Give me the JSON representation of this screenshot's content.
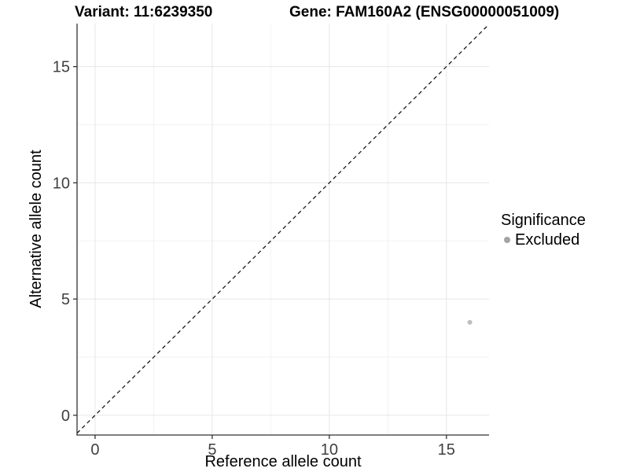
{
  "titles": {
    "variant": "Variant: 11:6239350",
    "gene": "Gene: FAM160A2 (ENSG00000051009)"
  },
  "axes": {
    "x": {
      "label": "Reference allele count"
    },
    "y": {
      "label": "Alternative allele count"
    }
  },
  "legend": {
    "title": "Significance",
    "items": [
      {
        "label": "Excluded",
        "color": "#A3A3A3"
      }
    ]
  },
  "colors": {
    "background": "#FFFFFF",
    "grid_major": "#E6E6E6",
    "grid_minor": "#F2F2F2",
    "axis": "#333333",
    "tick_text": "#404040",
    "title_text": "#000000",
    "point": "#BDBDBD",
    "legend_dot": "#A3A3A3",
    "ref_line": "#1A1A1A"
  },
  "chart_data": {
    "type": "scatter",
    "title": "Variant: 11:6239350   Gene: FAM160A2 (ENSG00000051009)",
    "xlabel": "Reference allele count",
    "ylabel": "Alternative allele count",
    "xlim": [
      -0.77,
      16.82
    ],
    "ylim": [
      -0.85,
      16.85
    ],
    "x_ticks": [
      0,
      5,
      10,
      15
    ],
    "x_tick_labels": [
      "0",
      "5",
      "10",
      "15"
    ],
    "y_ticks": [
      0,
      5,
      10,
      15
    ],
    "y_tick_labels": [
      "0",
      "5",
      "10",
      "15"
    ],
    "x_minor_breaks": [
      2.5,
      7.5,
      12.5
    ],
    "y_minor_breaks": [
      2.5,
      7.5,
      12.5
    ],
    "grid": "major+minor",
    "legend_position": "right",
    "series": [
      {
        "name": "Excluded",
        "color": "#BDBDBD",
        "marker": "circle",
        "points": [
          {
            "x": 16,
            "y": 4
          }
        ]
      }
    ],
    "reference_line": {
      "kind": "identity y=x",
      "style": "dashed",
      "color": "#1A1A1A"
    }
  }
}
